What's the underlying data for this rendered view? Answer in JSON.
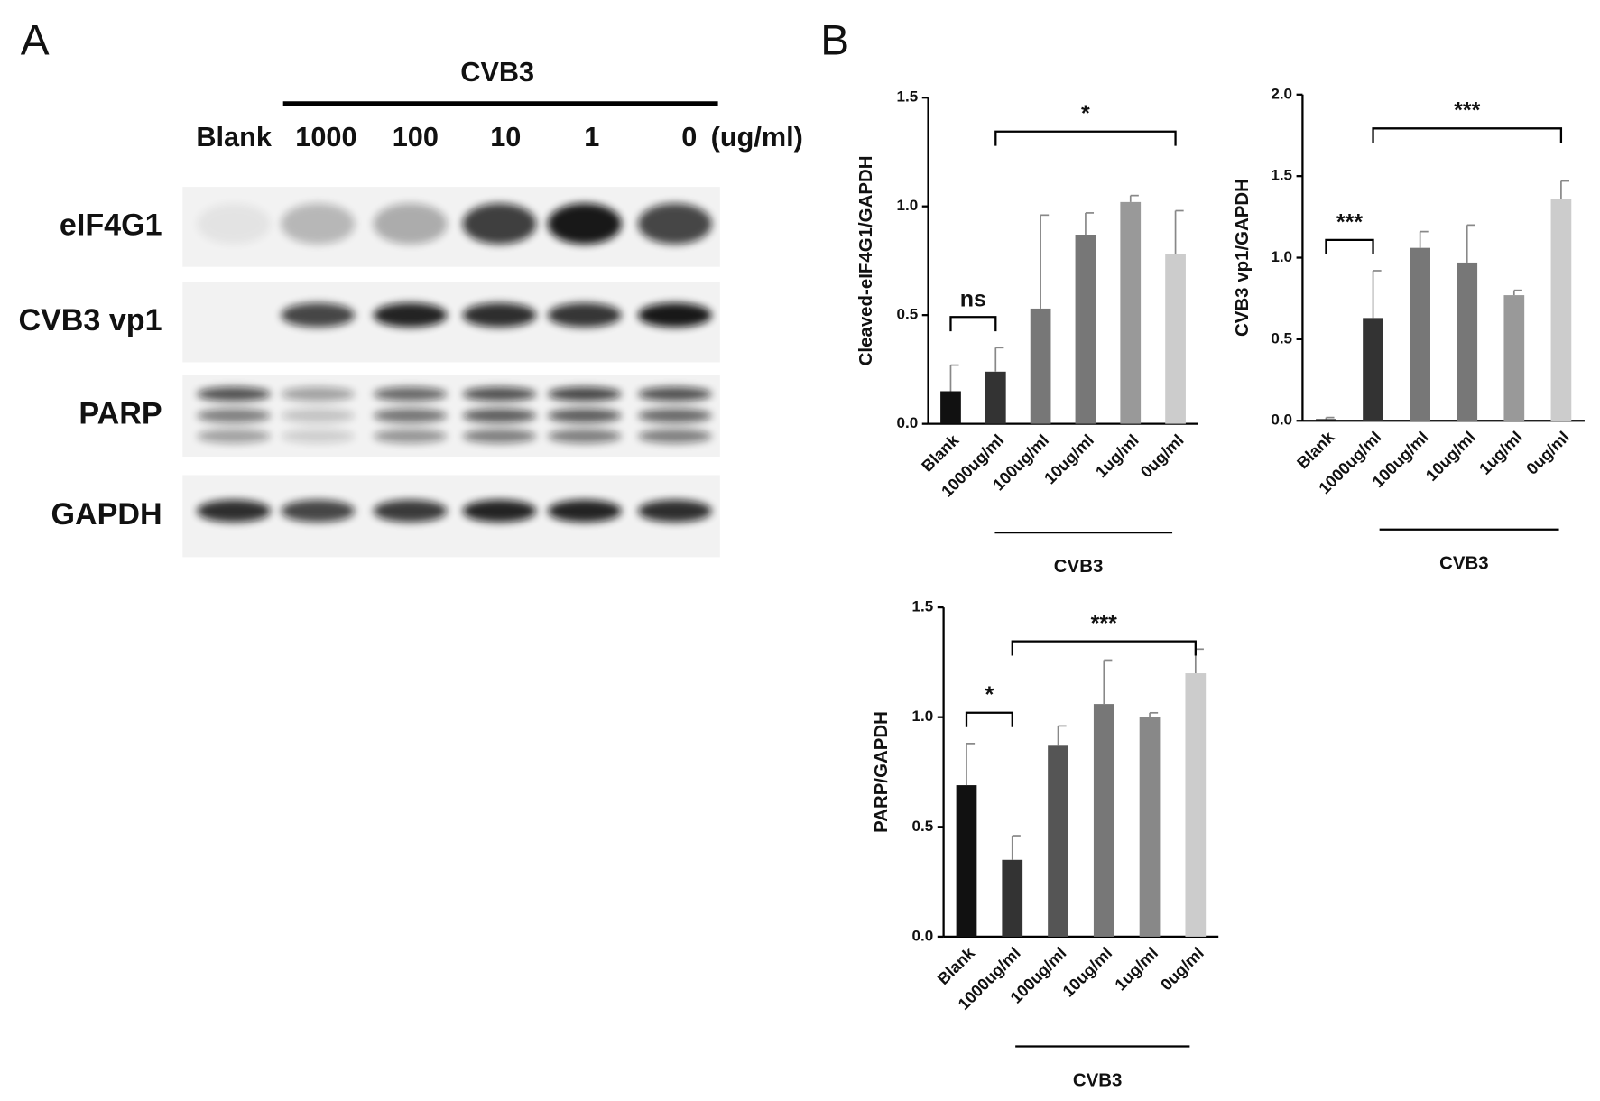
{
  "panel_a": {
    "letter": "A",
    "group_label": "CVB3",
    "lanes": [
      "Blank",
      "1000",
      "100",
      "10",
      "1",
      "0"
    ],
    "unit": "(ug/ml)",
    "rows": [
      "eIF4G1",
      "CVB3 vp1",
      "PARP",
      "GAPDH"
    ]
  },
  "panel_b": {
    "letter": "B"
  },
  "chart_data": [
    {
      "type": "bar",
      "y_label": "Cleaved-eIF4G1/GAPDH",
      "categories": [
        "Blank",
        "1000ug/ml",
        "100ug/ml",
        "10ug/ml",
        "1ug/ml",
        "0ug/ml"
      ],
      "values": [
        0.15,
        0.24,
        0.53,
        0.87,
        1.02,
        0.78
      ],
      "errors": [
        0.12,
        0.11,
        0.43,
        0.1,
        0.03,
        0.2
      ],
      "colors": [
        "#111111",
        "#333333",
        "#777777",
        "#777777",
        "#999999",
        "#cccccc"
      ],
      "ylim": [
        0,
        1.5
      ],
      "yticks": [
        {
          "value": 0,
          "label": "0.0"
        },
        0.5,
        {
          "value": 1,
          "label": "1.0"
        },
        1.5
      ],
      "group_label": "CVB3",
      "annotations": [
        "ns",
        "*"
      ]
    },
    {
      "type": "bar",
      "y_label": "CVB3 vp1/GAPDH",
      "categories": [
        "Blank",
        "1000ug/ml",
        "100ug/ml",
        "10ug/ml",
        "1ug/ml",
        "0ug/ml"
      ],
      "values": [
        0.01,
        0.63,
        1.06,
        0.97,
        0.77,
        1.36
      ],
      "errors": [
        0.01,
        0.29,
        0.1,
        0.23,
        0.03,
        0.11
      ],
      "colors": [
        "#111111",
        "#333333",
        "#777777",
        "#777777",
        "#999999",
        "#cccccc"
      ],
      "ylim": [
        0,
        2
      ],
      "yticks": [
        {
          "value": 0,
          "label": "0.0"
        },
        0.5,
        {
          "value": 1,
          "label": "1.0"
        },
        1.5,
        {
          "value": 2,
          "label": "2.0"
        }
      ],
      "group_label": "CVB3",
      "annotations": [
        "***",
        "***"
      ]
    },
    {
      "type": "bar",
      "y_label": "PARP/GAPDH",
      "categories": [
        "Blank",
        "1000ug/ml",
        "100ug/ml",
        "10ug/ml",
        "1ug/ml",
        "0ug/ml"
      ],
      "values": [
        0.69,
        0.35,
        0.87,
        1.06,
        1.0,
        1.2
      ],
      "errors": [
        0.19,
        0.11,
        0.09,
        0.2,
        0.02,
        0.11
      ],
      "colors": [
        "#111111",
        "#333333",
        "#555555",
        "#777777",
        "#888888",
        "#cccccc"
      ],
      "ylim": [
        0,
        1.5
      ],
      "yticks": [
        {
          "value": 0,
          "label": "0.0"
        },
        0.5,
        {
          "value": 1,
          "label": "1.0"
        },
        1.5
      ],
      "group_label": "CVB3",
      "annotations": [
        "*",
        "***"
      ]
    }
  ]
}
